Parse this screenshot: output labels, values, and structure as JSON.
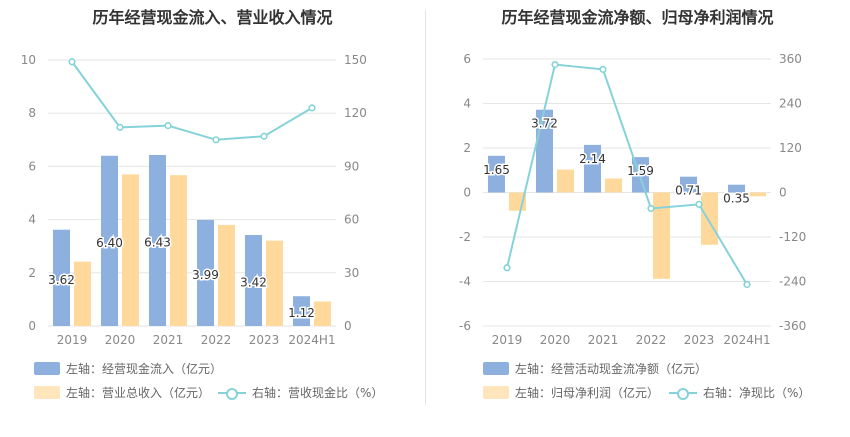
{
  "titles": {
    "left": "历年经营现金流入、营业收入情况",
    "right": "历年经营现金流净额、归母净利润情况"
  },
  "colors": {
    "bar_primary": "#8eb0df",
    "bar_secondary": "#ffd99b",
    "line": "#85d3d9",
    "grid": "#e6e6e6",
    "axis_text": "#888888"
  },
  "legend": {
    "left": {
      "item1": "左轴：经营现金流入（亿元）",
      "item2": "左轴：营业总收入（亿元）",
      "item3": "右轴：营收现金比（%）"
    },
    "right": {
      "item1": "左轴：经营活动现金流净额（亿元）",
      "item2": "左轴：归母净利润（亿元）",
      "item3": "右轴：净现比（%）"
    }
  },
  "chart_data": [
    {
      "type": "bar",
      "title": "历年经营现金流入、营业收入情况",
      "categories": [
        "2019",
        "2020",
        "2021",
        "2022",
        "2023",
        "2024H1"
      ],
      "ylim_left": [
        0,
        10
      ],
      "yticks_left": [
        0,
        2,
        4,
        6,
        8,
        10
      ],
      "ylim_right": [
        0,
        150
      ],
      "yticks_right": [
        0,
        30,
        60,
        90,
        120,
        150
      ],
      "series": [
        {
          "name": "左轴：经营现金流入（亿元）",
          "axis": "left",
          "kind": "bar",
          "values": [
            3.62,
            6.4,
            6.43,
            3.99,
            3.42,
            1.12
          ],
          "labels": [
            "3.62",
            "6.40",
            "6.43",
            "3.99",
            "3.42",
            "1.12"
          ]
        },
        {
          "name": "左轴：营业总收入（亿元）",
          "axis": "left",
          "kind": "bar",
          "values": [
            2.42,
            5.7,
            5.67,
            3.8,
            3.21,
            0.92
          ]
        },
        {
          "name": "右轴：营收现金比（%）",
          "axis": "right",
          "kind": "line",
          "values": [
            149,
            112,
            113,
            105,
            107,
            123
          ]
        }
      ],
      "grid": true,
      "legend_position": "bottom-left"
    },
    {
      "type": "bar",
      "title": "历年经营现金流净额、归母净利润情况",
      "categories": [
        "2019",
        "2020",
        "2021",
        "2022",
        "2023",
        "2024H1"
      ],
      "ylim_left": [
        -6,
        6
      ],
      "yticks_left": [
        -6,
        -4,
        -2,
        0,
        2,
        4,
        6
      ],
      "ylim_right": [
        -360,
        360
      ],
      "yticks_right": [
        -360,
        -240,
        -120,
        0,
        120,
        240,
        360
      ],
      "series": [
        {
          "name": "左轴：经营活动现金流净额（亿元）",
          "axis": "left",
          "kind": "bar",
          "values": [
            1.65,
            3.72,
            2.14,
            1.59,
            0.71,
            0.35
          ],
          "labels": [
            "1.65",
            "3.72",
            "2.14",
            "1.59",
            "0.71",
            "0.35"
          ]
        },
        {
          "name": "左轴：归母净利润（亿元）",
          "axis": "left",
          "kind": "bar",
          "values": [
            -0.82,
            1.03,
            0.63,
            -3.88,
            -2.35,
            -0.17
          ]
        },
        {
          "name": "右轴：净现比（%）",
          "axis": "right",
          "kind": "line",
          "values": [
            -203,
            345,
            332,
            -43,
            -32,
            -248
          ]
        }
      ],
      "grid": true,
      "legend_position": "bottom-left"
    }
  ]
}
